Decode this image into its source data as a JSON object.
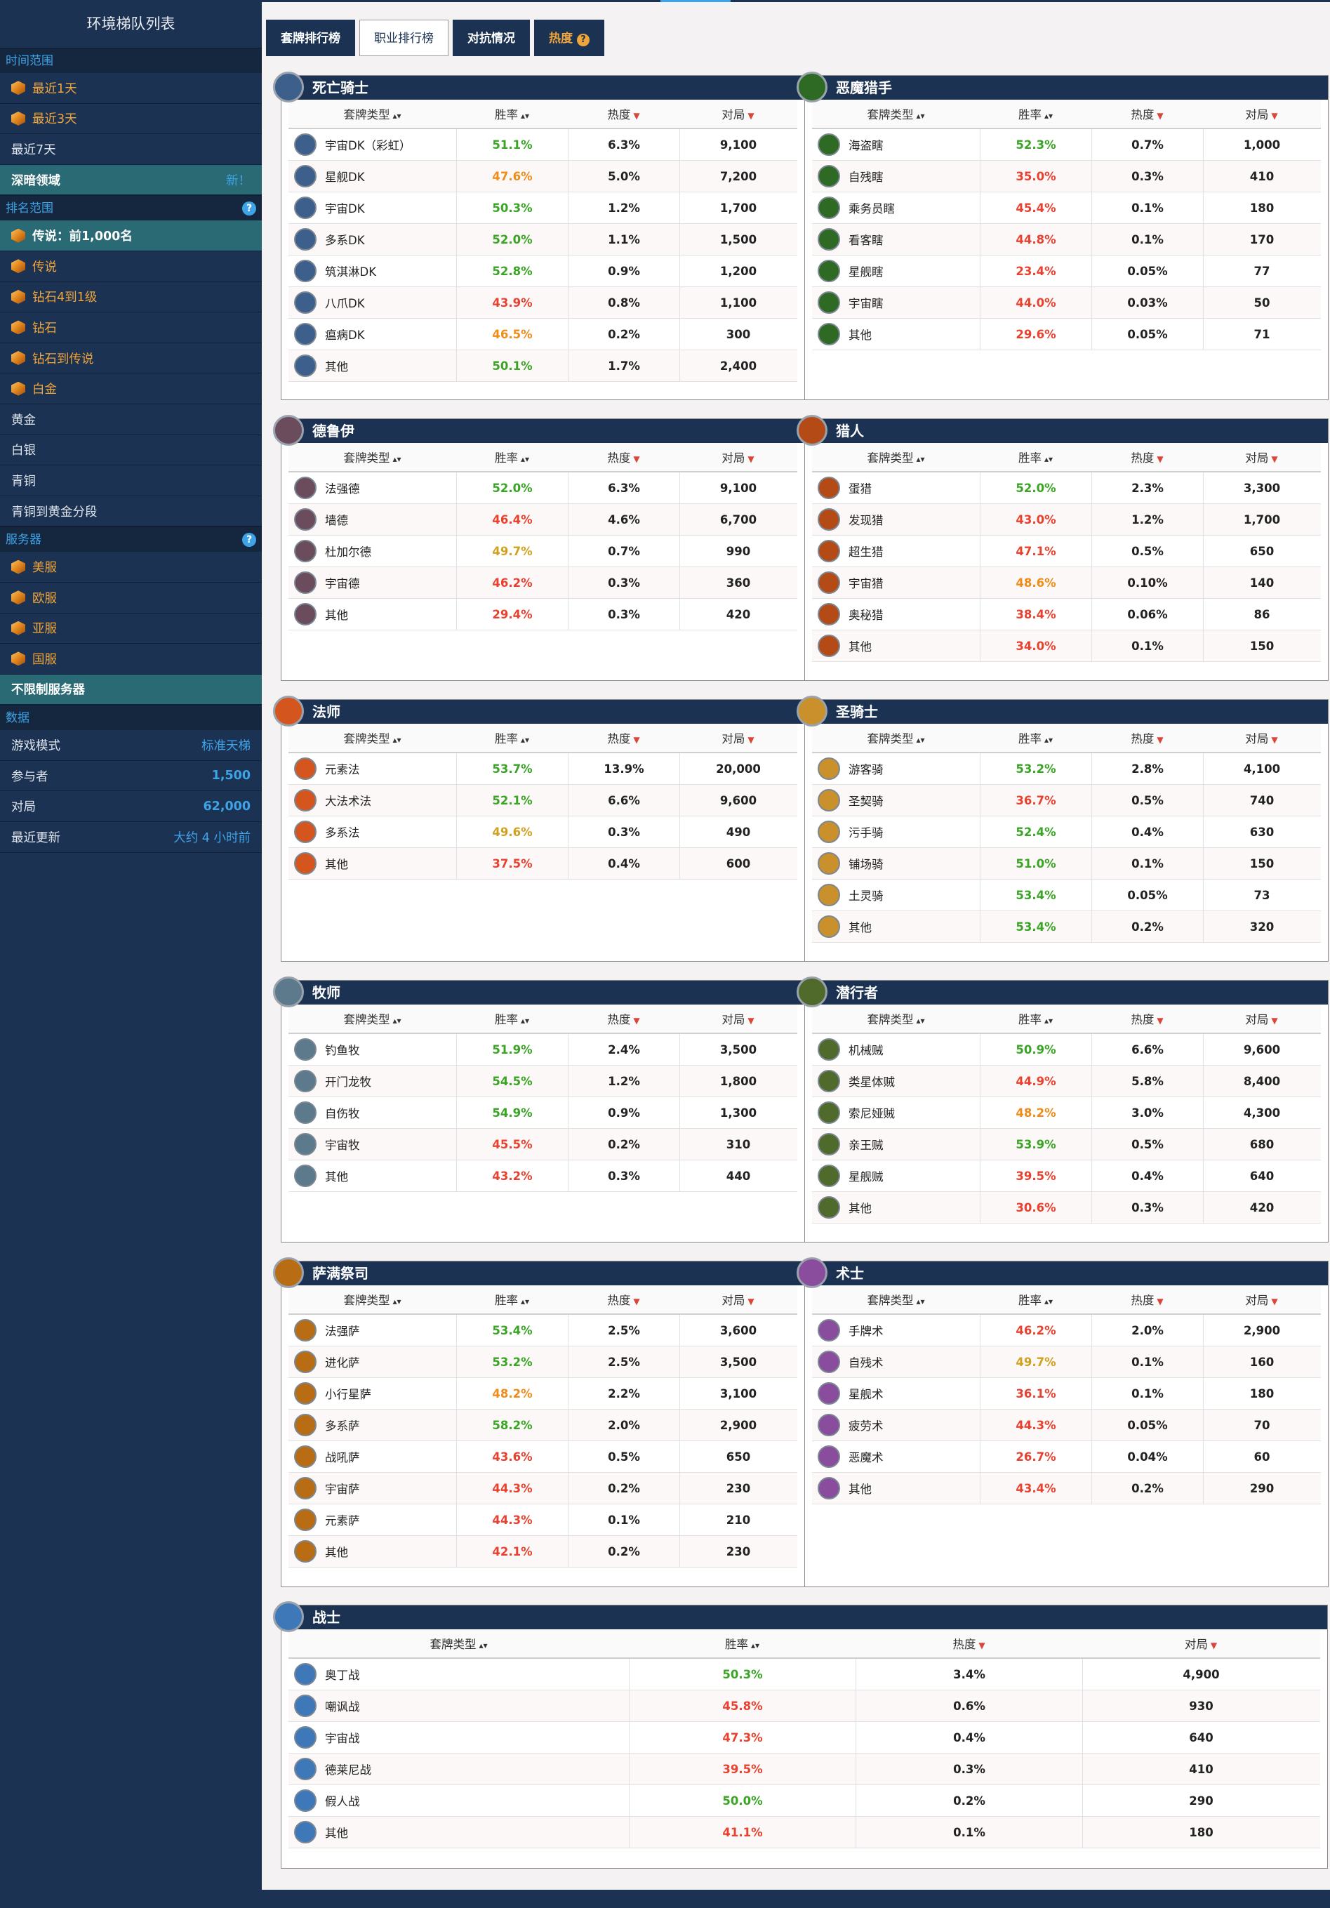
{
  "sidebar": {
    "title": "环境梯队列表",
    "time_header": "时间范围",
    "time_items": [
      {
        "label": "最近1天"
      },
      {
        "label": "最近3天"
      },
      {
        "label": "最近7天"
      }
    ],
    "deep_label": "深暗领域",
    "deep_badge": "新！",
    "rank_header": "排名范围",
    "rank_items": [
      {
        "label": "传说：前1,000名"
      },
      {
        "label": "传说"
      },
      {
        "label": "钻石4到1级"
      },
      {
        "label": "钻石"
      },
      {
        "label": "钻石到传说"
      },
      {
        "label": "白金"
      },
      {
        "label": "黄金"
      },
      {
        "label": "白银"
      },
      {
        "label": "青铜"
      },
      {
        "label": "青铜到黄金分段"
      }
    ],
    "server_header": "服务器",
    "server_items": [
      {
        "label": "美服"
      },
      {
        "label": "欧服"
      },
      {
        "label": "亚服"
      },
      {
        "label": "国服"
      },
      {
        "label": "不限制服务器"
      }
    ],
    "data_header": "数据",
    "data_items": [
      {
        "label": "游戏模式",
        "value": "标准天梯"
      },
      {
        "label": "参与者",
        "value": "1,500"
      },
      {
        "label": "对局",
        "value": "62,000"
      },
      {
        "label": "最近更新",
        "value": "大约 4 小时前"
      }
    ]
  },
  "tabs": [
    {
      "label": "套牌排行榜"
    },
    {
      "label": "职业排行榜"
    },
    {
      "label": "对抗情况"
    },
    {
      "label": "热度",
      "icon": "?"
    }
  ],
  "headers": {
    "deck": "套牌类型",
    "winrate": "胜率",
    "popularity": "热度",
    "games": "对局"
  },
  "colors": {
    "navy": "#1b3253",
    "green": "#3aa524",
    "orange": "#f08c1a",
    "red": "#e8412f",
    "yellow": "#d1a21f",
    "teal": "#2a6a74",
    "blue": "#3fa3e8"
  },
  "classes": [
    {
      "name": "死亡骑士",
      "icon": "death-knight-icon",
      "decks": [
        {
          "name": "宇宙DK（彩虹）",
          "wr": "51.1%",
          "c": "g",
          "pop": "6.3%",
          "games": "9,100"
        },
        {
          "name": "星舰DK",
          "wr": "47.6%",
          "c": "o",
          "pop": "5.0%",
          "games": "7,200"
        },
        {
          "name": "宇宙DK",
          "wr": "50.3%",
          "c": "g",
          "pop": "1.2%",
          "games": "1,700"
        },
        {
          "name": "多系DK",
          "wr": "52.0%",
          "c": "g",
          "pop": "1.1%",
          "games": "1,500"
        },
        {
          "name": "筑淇淋DK",
          "wr": "52.8%",
          "c": "g",
          "pop": "0.9%",
          "games": "1,200"
        },
        {
          "name": "八爪DK",
          "wr": "43.9%",
          "c": "r",
          "pop": "0.8%",
          "games": "1,100"
        },
        {
          "name": "瘟病DK",
          "wr": "46.5%",
          "c": "o",
          "pop": "0.2%",
          "games": "300"
        },
        {
          "name": "其他",
          "wr": "50.1%",
          "c": "g",
          "pop": "1.7%",
          "games": "2,400"
        }
      ]
    },
    {
      "name": "恶魔猎手",
      "icon": "demon-hunter-icon",
      "decks": [
        {
          "name": "海盗瞎",
          "wr": "52.3%",
          "c": "g",
          "pop": "0.7%",
          "games": "1,000"
        },
        {
          "name": "自残瞎",
          "wr": "35.0%",
          "c": "r",
          "pop": "0.3%",
          "games": "410"
        },
        {
          "name": "乘务员瞎",
          "wr": "45.4%",
          "c": "r",
          "pop": "0.1%",
          "games": "180"
        },
        {
          "name": "看客瞎",
          "wr": "44.8%",
          "c": "r",
          "pop": "0.1%",
          "games": "170"
        },
        {
          "name": "星舰瞎",
          "wr": "23.4%",
          "c": "r",
          "pop": "0.05%",
          "games": "77"
        },
        {
          "name": "宇宙瞎",
          "wr": "44.0%",
          "c": "r",
          "pop": "0.03%",
          "games": "50"
        },
        {
          "name": "其他",
          "wr": "29.6%",
          "c": "r",
          "pop": "0.05%",
          "games": "71"
        }
      ]
    },
    {
      "name": "德鲁伊",
      "icon": "druid-icon",
      "decks": [
        {
          "name": "法强德",
          "wr": "52.0%",
          "c": "g",
          "pop": "6.3%",
          "games": "9,100"
        },
        {
          "name": "墙德",
          "wr": "46.4%",
          "c": "r",
          "pop": "4.6%",
          "games": "6,700"
        },
        {
          "name": "杜加尔德",
          "wr": "49.7%",
          "c": "y",
          "pop": "0.7%",
          "games": "990"
        },
        {
          "name": "宇宙德",
          "wr": "46.2%",
          "c": "r",
          "pop": "0.3%",
          "games": "360"
        },
        {
          "name": "其他",
          "wr": "29.4%",
          "c": "r",
          "pop": "0.3%",
          "games": "420"
        }
      ]
    },
    {
      "name": "猎人",
      "icon": "hunter-icon",
      "decks": [
        {
          "name": "蛋猎",
          "wr": "52.0%",
          "c": "g",
          "pop": "2.3%",
          "games": "3,300"
        },
        {
          "name": "发现猎",
          "wr": "43.0%",
          "c": "r",
          "pop": "1.2%",
          "games": "1,700"
        },
        {
          "name": "超生猎",
          "wr": "47.1%",
          "c": "r",
          "pop": "0.5%",
          "games": "650"
        },
        {
          "name": "宇宙猎",
          "wr": "48.6%",
          "c": "o",
          "pop": "0.10%",
          "games": "140"
        },
        {
          "name": "奥秘猎",
          "wr": "38.4%",
          "c": "r",
          "pop": "0.06%",
          "games": "86"
        },
        {
          "name": "其他",
          "wr": "34.0%",
          "c": "r",
          "pop": "0.1%",
          "games": "150"
        }
      ]
    },
    {
      "name": "法师",
      "icon": "mage-icon",
      "decks": [
        {
          "name": "元素法",
          "wr": "53.7%",
          "c": "g",
          "pop": "13.9%",
          "games": "20,000"
        },
        {
          "name": "大法术法",
          "wr": "52.1%",
          "c": "g",
          "pop": "6.6%",
          "games": "9,600"
        },
        {
          "name": "多系法",
          "wr": "49.6%",
          "c": "y",
          "pop": "0.3%",
          "games": "490"
        },
        {
          "name": "其他",
          "wr": "37.5%",
          "c": "r",
          "pop": "0.4%",
          "games": "600"
        }
      ]
    },
    {
      "name": "圣骑士",
      "icon": "paladin-icon",
      "decks": [
        {
          "name": "游客骑",
          "wr": "53.2%",
          "c": "g",
          "pop": "2.8%",
          "games": "4,100"
        },
        {
          "name": "圣契骑",
          "wr": "36.7%",
          "c": "r",
          "pop": "0.5%",
          "games": "740"
        },
        {
          "name": "污手骑",
          "wr": "52.4%",
          "c": "g",
          "pop": "0.4%",
          "games": "630"
        },
        {
          "name": "铺场骑",
          "wr": "51.0%",
          "c": "g",
          "pop": "0.1%",
          "games": "150"
        },
        {
          "name": "土灵骑",
          "wr": "53.4%",
          "c": "g",
          "pop": "0.05%",
          "games": "73"
        },
        {
          "name": "其他",
          "wr": "53.4%",
          "c": "g",
          "pop": "0.2%",
          "games": "320"
        }
      ]
    },
    {
      "name": "牧师",
      "icon": "priest-icon",
      "decks": [
        {
          "name": "钓鱼牧",
          "wr": "51.9%",
          "c": "g",
          "pop": "2.4%",
          "games": "3,500"
        },
        {
          "name": "开门龙牧",
          "wr": "54.5%",
          "c": "g",
          "pop": "1.2%",
          "games": "1,800"
        },
        {
          "name": "自伤牧",
          "wr": "54.9%",
          "c": "g",
          "pop": "0.9%",
          "games": "1,300"
        },
        {
          "name": "宇宙牧",
          "wr": "45.5%",
          "c": "r",
          "pop": "0.2%",
          "games": "310"
        },
        {
          "name": "其他",
          "wr": "43.2%",
          "c": "r",
          "pop": "0.3%",
          "games": "440"
        }
      ]
    },
    {
      "name": "潜行者",
      "icon": "rogue-icon",
      "decks": [
        {
          "name": "机械贼",
          "wr": "50.9%",
          "c": "g",
          "pop": "6.6%",
          "games": "9,600"
        },
        {
          "name": "类星体贼",
          "wr": "44.9%",
          "c": "r",
          "pop": "5.8%",
          "games": "8,400"
        },
        {
          "name": "索尼娅贼",
          "wr": "48.2%",
          "c": "o",
          "pop": "3.0%",
          "games": "4,300"
        },
        {
          "name": "亲王贼",
          "wr": "53.9%",
          "c": "g",
          "pop": "0.5%",
          "games": "680"
        },
        {
          "name": "星舰贼",
          "wr": "39.5%",
          "c": "r",
          "pop": "0.4%",
          "games": "640"
        },
        {
          "name": "其他",
          "wr": "30.6%",
          "c": "r",
          "pop": "0.3%",
          "games": "420"
        }
      ]
    },
    {
      "name": "萨满祭司",
      "icon": "shaman-icon",
      "decks": [
        {
          "name": "法强萨",
          "wr": "53.4%",
          "c": "g",
          "pop": "2.5%",
          "games": "3,600"
        },
        {
          "name": "进化萨",
          "wr": "53.2%",
          "c": "g",
          "pop": "2.5%",
          "games": "3,500"
        },
        {
          "name": "小行星萨",
          "wr": "48.2%",
          "c": "o",
          "pop": "2.2%",
          "games": "3,100"
        },
        {
          "name": "多系萨",
          "wr": "58.2%",
          "c": "g",
          "pop": "2.0%",
          "games": "2,900"
        },
        {
          "name": "战吼萨",
          "wr": "43.6%",
          "c": "r",
          "pop": "0.5%",
          "games": "650"
        },
        {
          "name": "宇宙萨",
          "wr": "44.3%",
          "c": "r",
          "pop": "0.2%",
          "games": "230"
        },
        {
          "name": "元素萨",
          "wr": "44.3%",
          "c": "r",
          "pop": "0.1%",
          "games": "210"
        },
        {
          "name": "其他",
          "wr": "42.1%",
          "c": "r",
          "pop": "0.2%",
          "games": "230"
        }
      ]
    },
    {
      "name": "术士",
      "icon": "warlock-icon",
      "decks": [
        {
          "name": "手牌术",
          "wr": "46.2%",
          "c": "r",
          "pop": "2.0%",
          "games": "2,900"
        },
        {
          "name": "自残术",
          "wr": "49.7%",
          "c": "y",
          "pop": "0.1%",
          "games": "160"
        },
        {
          "name": "星舰术",
          "wr": "36.1%",
          "c": "r",
          "pop": "0.1%",
          "games": "180"
        },
        {
          "name": "疲劳术",
          "wr": "44.3%",
          "c": "r",
          "pop": "0.05%",
          "games": "70"
        },
        {
          "name": "恶魔术",
          "wr": "26.7%",
          "c": "r",
          "pop": "0.04%",
          "games": "60"
        },
        {
          "name": "其他",
          "wr": "43.4%",
          "c": "r",
          "pop": "0.2%",
          "games": "290"
        }
      ]
    },
    {
      "name": "战士",
      "icon": "warrior-icon",
      "decks": [
        {
          "name": "奥丁战",
          "wr": "50.3%",
          "c": "g",
          "pop": "3.4%",
          "games": "4,900"
        },
        {
          "name": "嘲讽战",
          "wr": "45.8%",
          "c": "r",
          "pop": "0.6%",
          "games": "930"
        },
        {
          "name": "宇宙战",
          "wr": "47.3%",
          "c": "r",
          "pop": "0.4%",
          "games": "640"
        },
        {
          "name": "德莱尼战",
          "wr": "39.5%",
          "c": "r",
          "pop": "0.3%",
          "games": "410"
        },
        {
          "name": "假人战",
          "wr": "50.0%",
          "c": "g",
          "pop": "0.2%",
          "games": "290"
        },
        {
          "name": "其他",
          "wr": "41.1%",
          "c": "r",
          "pop": "0.1%",
          "games": "180"
        }
      ]
    }
  ]
}
